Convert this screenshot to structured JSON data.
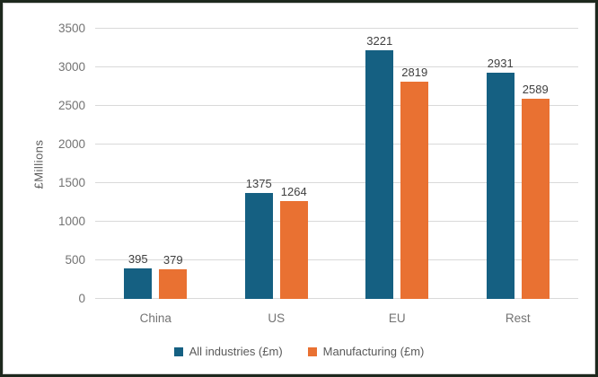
{
  "chart_data": {
    "type": "bar",
    "title": "",
    "categories": [
      "China",
      "US",
      "EU",
      "Rest"
    ],
    "series": [
      {
        "name": "All industries (£m)",
        "color": "#156082",
        "pattern": "solid",
        "values": [
          395,
          1375,
          3221,
          2931
        ]
      },
      {
        "name": "Manufacturing (£m)",
        "color": "#E97132",
        "pattern": "dots",
        "values": [
          379,
          1264,
          2819,
          2589
        ]
      }
    ],
    "xlabel": "",
    "ylabel": "£Millions",
    "ylim": [
      0,
      3500
    ],
    "ytick_interval": 500,
    "ytick_labels": [
      "0",
      "500",
      "1000",
      "1500",
      "2000",
      "2500",
      "3000",
      "3500"
    ],
    "grid": true,
    "legend_position": "bottom",
    "data_labels": true
  },
  "style": {
    "series_colors": [
      "#156082",
      "#E97132"
    ],
    "gridline_color": "#D9D9D9",
    "axis_text_color": "#737373",
    "data_label_color": "#404040",
    "legend_text_color": "#595959",
    "background": "#FFFFFF",
    "frame_border_color": "#1D281D"
  }
}
